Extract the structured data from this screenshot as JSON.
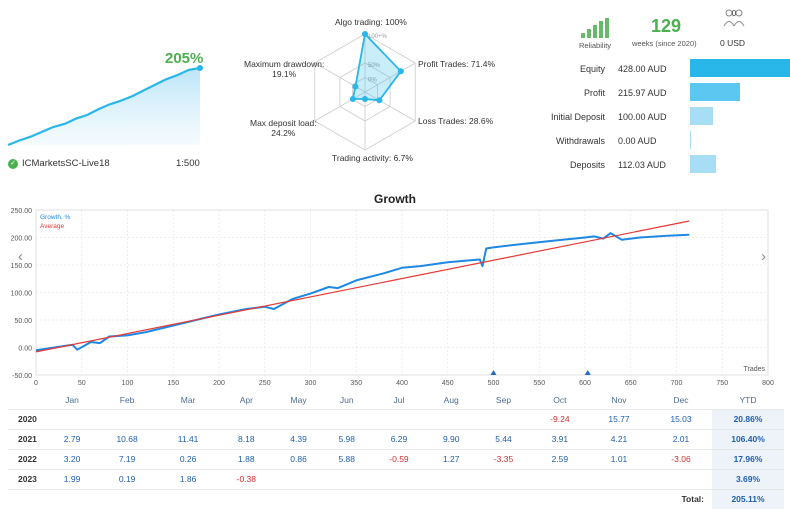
{
  "summary": {
    "growth_pct": "205%",
    "broker": "ICMarketsSC-Live18",
    "leverage": "1:500",
    "mini_curve": [
      0,
      12,
      22,
      35,
      48,
      56,
      70,
      80,
      95,
      108,
      118,
      130,
      145,
      160,
      175,
      186,
      200,
      205
    ]
  },
  "radar": {
    "labels": {
      "algo": "Algo trading: 100%",
      "profit": "Profit Trades: 71.4%",
      "loss": "Loss Trades: 28.6%",
      "activity": "Trading activity: 6.7%",
      "deposit_load": "Max deposit load:",
      "deposit_load_val": "24.2%",
      "drawdown": "Maximum drawdown:",
      "drawdown_val": "19.1%"
    },
    "ring_labels": [
      "100+%",
      "50%",
      "0%"
    ],
    "values": [
      100,
      71.4,
      28.6,
      6.7,
      24.2,
      19.1
    ]
  },
  "stats": {
    "reliability_label": "Reliability",
    "weeks": "129",
    "weeks_label": "weeks (since 2020)",
    "subscribers": "0",
    "usd": "0 USD",
    "rows": [
      {
        "label": "Equity",
        "value": "428.00 AUD",
        "amount": 428.0,
        "color": "#29b6e8"
      },
      {
        "label": "Profit",
        "value": "215.97 AUD",
        "amount": 215.97,
        "color": "#5cc7f0"
      },
      {
        "label": "Initial Deposit",
        "value": "100.00 AUD",
        "amount": 100.0,
        "color": "#a8def5"
      },
      {
        "label": "Withdrawals",
        "value": "0.00 AUD",
        "amount": 0.0,
        "color": "#a8def5"
      },
      {
        "label": "Deposits",
        "value": "112.03 AUD",
        "amount": 112.03,
        "color": "#a8def5"
      }
    ]
  },
  "chart_data": {
    "type": "line",
    "title": "Growth",
    "xlabel": "Trades",
    "ylabel": "",
    "xlim": [
      0,
      800
    ],
    "ylim": [
      -50,
      250
    ],
    "x_ticks": [
      0,
      50,
      100,
      150,
      200,
      250,
      300,
      350,
      400,
      450,
      500,
      550,
      600,
      650,
      700,
      750,
      800
    ],
    "y_ticks": [
      "250.00",
      "200.00",
      "150.00",
      "100.00",
      "50.00",
      "0.00",
      "-50.00"
    ],
    "legend": [
      "Growth, %",
      "Average"
    ],
    "legend_position": "top-left",
    "grid": true,
    "series": [
      {
        "name": "Growth, %",
        "color": "#1e88e5",
        "x": [
          0,
          20,
          40,
          45,
          60,
          70,
          80,
          100,
          120,
          150,
          180,
          200,
          230,
          250,
          260,
          280,
          300,
          320,
          330,
          350,
          380,
          400,
          420,
          450,
          470,
          485,
          488,
          492,
          500,
          530,
          570,
          600,
          610,
          620,
          628,
          640,
          660,
          690,
          714
        ],
        "y": [
          -5,
          0,
          5,
          -4,
          10,
          8,
          20,
          22,
          28,
          40,
          52,
          60,
          70,
          74,
          70,
          88,
          98,
          110,
          108,
          122,
          135,
          145,
          148,
          155,
          158,
          160,
          148,
          180,
          182,
          188,
          195,
          200,
          202,
          198,
          208,
          196,
          200,
          203,
          205
        ]
      },
      {
        "name": "Average",
        "color": "#e53935",
        "x": [
          0,
          714
        ],
        "y": [
          -8,
          230
        ]
      }
    ],
    "markers_x": [
      500,
      603
    ]
  },
  "table": {
    "headers": [
      "",
      "Jan",
      "Feb",
      "Mar",
      "Apr",
      "May",
      "Jun",
      "Jul",
      "Aug",
      "Sep",
      "Oct",
      "Nov",
      "Dec",
      "YTD"
    ],
    "rows": [
      {
        "year": "2020",
        "cells": [
          "",
          "",
          "",
          "",
          "",
          "",
          "",
          "",
          "",
          "-9.24",
          "15.77",
          "15.03"
        ],
        "ytd": "20.86%"
      },
      {
        "year": "2021",
        "cells": [
          "2.79",
          "10.68",
          "11.41",
          "8.18",
          "4.39",
          "5.98",
          "6.29",
          "9.90",
          "5.44",
          "3.91",
          "4.21",
          "2.01"
        ],
        "ytd": "106.40%"
      },
      {
        "year": "2022",
        "cells": [
          "3.20",
          "7.19",
          "0.26",
          "1.88",
          "0.86",
          "5.88",
          "-0.59",
          "1.27",
          "-3.35",
          "2.59",
          "1.01",
          "-3.06"
        ],
        "ytd": "17.96%"
      },
      {
        "year": "2023",
        "cells": [
          "1.99",
          "0.19",
          "1.86",
          "-0.38",
          "",
          "",
          "",
          "",
          "",
          "",
          "",
          ""
        ],
        "ytd": "3.69%"
      }
    ],
    "total_label": "Total:",
    "total_value": "205.11%"
  }
}
